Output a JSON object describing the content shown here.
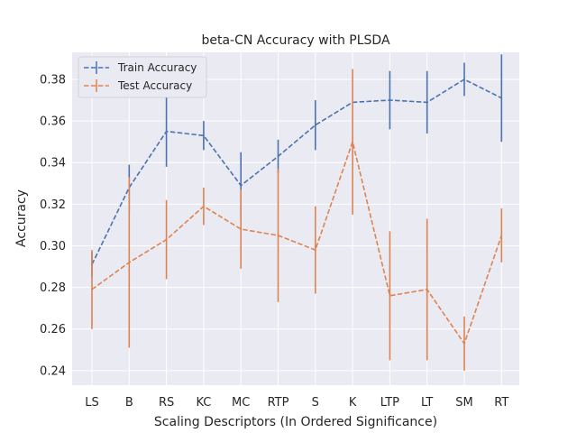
{
  "chart_data": {
    "type": "line",
    "title": "beta-CN Accuracy with PLSDA",
    "xlabel": "Scaling Descriptors (In Ordered Significance)",
    "ylabel": "Accuracy",
    "categories": [
      "LS",
      "B",
      "RS",
      "KC",
      "MC",
      "RTP",
      "S",
      "K",
      "LTP",
      "LT",
      "SM",
      "RT"
    ],
    "ylim": [
      0.233,
      0.393
    ],
    "yticks": [
      "0.24",
      "0.26",
      "0.28",
      "0.30",
      "0.32",
      "0.34",
      "0.36",
      "0.38"
    ],
    "grid": true,
    "legend_position": "top-left",
    "series": [
      {
        "name": "Train Accuracy",
        "color": "#4c72b0",
        "values": [
          0.291,
          0.328,
          0.355,
          0.353,
          0.329,
          0.343,
          0.358,
          0.369,
          0.37,
          0.369,
          0.38,
          0.371
        ],
        "error": [
          0.006,
          0.011,
          0.017,
          0.007,
          0.016,
          0.008,
          0.012,
          0.0,
          0.014,
          0.015,
          0.008,
          0.021
        ]
      },
      {
        "name": "Test Accuracy",
        "color": "#dd8452",
        "values": [
          0.279,
          0.292,
          0.303,
          0.319,
          0.308,
          0.305,
          0.298,
          0.35,
          0.276,
          0.279,
          0.253,
          0.305
        ],
        "error": [
          0.019,
          0.041,
          0.019,
          0.009,
          0.019,
          0.032,
          0.021,
          0.035,
          0.031,
          0.034,
          0.013,
          0.013
        ]
      }
    ]
  }
}
